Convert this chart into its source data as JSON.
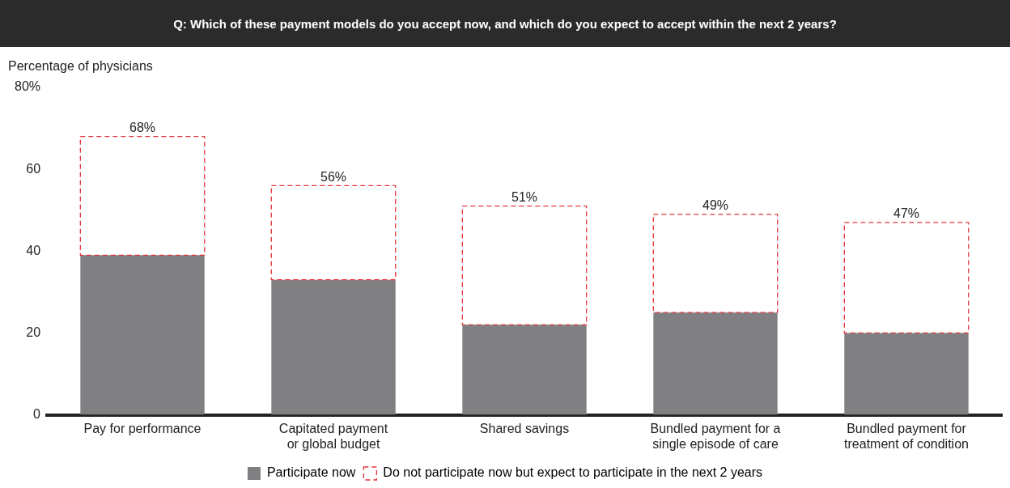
{
  "chart_data": {
    "type": "bar",
    "stacked": true,
    "title": "Q: Which of these payment models do you accept now, and which do you expect to accept within the next 2 years?",
    "ylabel": "Percentage of physicians",
    "categories": [
      "Pay for performance",
      "Capitated payment or global budget",
      "Shared savings",
      "Bundled payment for a single episode of care",
      "Bundled payment for treatment of condition"
    ],
    "series": [
      {
        "name": "Participate now",
        "color": "#808083",
        "values": [
          39,
          33,
          22,
          25,
          20
        ]
      },
      {
        "name": "Do not participate now but expect to participate in the next 2 years",
        "color": "#e8333a",
        "line_style": "dashed",
        "values": [
          29,
          23,
          29,
          24,
          27
        ]
      }
    ],
    "totals": [
      "68%",
      "56%",
      "51%",
      "49%",
      "47%"
    ],
    "ylim": [
      0,
      80
    ],
    "yticks": [
      0,
      20,
      40,
      60,
      {
        "value": 80,
        "label": "80%"
      }
    ],
    "grid": false,
    "legend": "bottom"
  }
}
